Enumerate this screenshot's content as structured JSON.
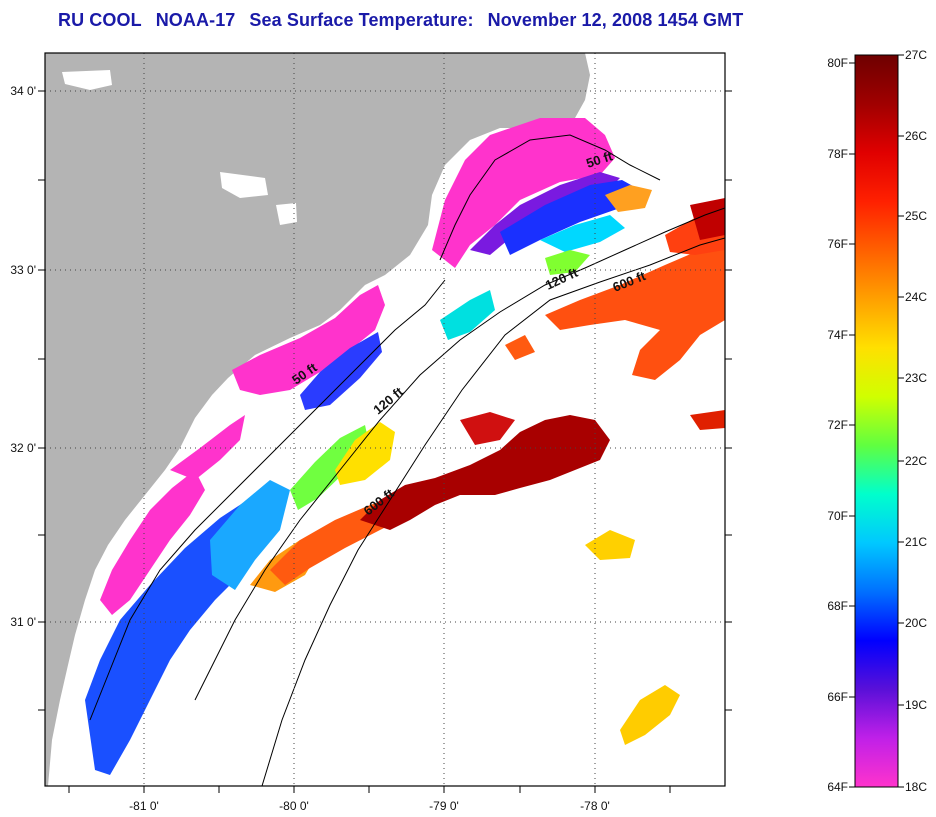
{
  "title": {
    "org": "RU COOL",
    "satellite": "NOAA-17",
    "product": "Sea Surface Temperature:",
    "date": "November 12, 2008 1454 GMT"
  },
  "map": {
    "lat_labels": [
      "34 0'",
      "33 0'",
      "32 0'",
      "31 0'"
    ],
    "lon_labels": [
      "-81 0'",
      "-80 0'",
      "-79 0'",
      "-78 0'"
    ],
    "isobaths": [
      "50 ft",
      "50 ft",
      "120 ft",
      "120 ft",
      "600 ft",
      "600 ft"
    ],
    "colors": {
      "land": "#b4b4b4",
      "frame": "#000000",
      "grid": "#333333"
    }
  },
  "colorbar": {
    "fahrenheit_labels": [
      "80F",
      "78F",
      "76F",
      "74F",
      "72F",
      "70F",
      "68F",
      "66F",
      "64F"
    ],
    "celsius_labels": [
      "27C",
      "26C",
      "25C",
      "24C",
      "23C",
      "22C",
      "21C",
      "20C",
      "19C",
      "18C"
    ],
    "stops": [
      "#ff33cc",
      "#c020e8",
      "#5a10d8",
      "#0000ff",
      "#0070ff",
      "#00c8ff",
      "#00ffcc",
      "#60ff40",
      "#d0ff00",
      "#ffe000",
      "#ffa000",
      "#ff6000",
      "#ff2000",
      "#e00000",
      "#a00000",
      "#6e0000"
    ]
  }
}
